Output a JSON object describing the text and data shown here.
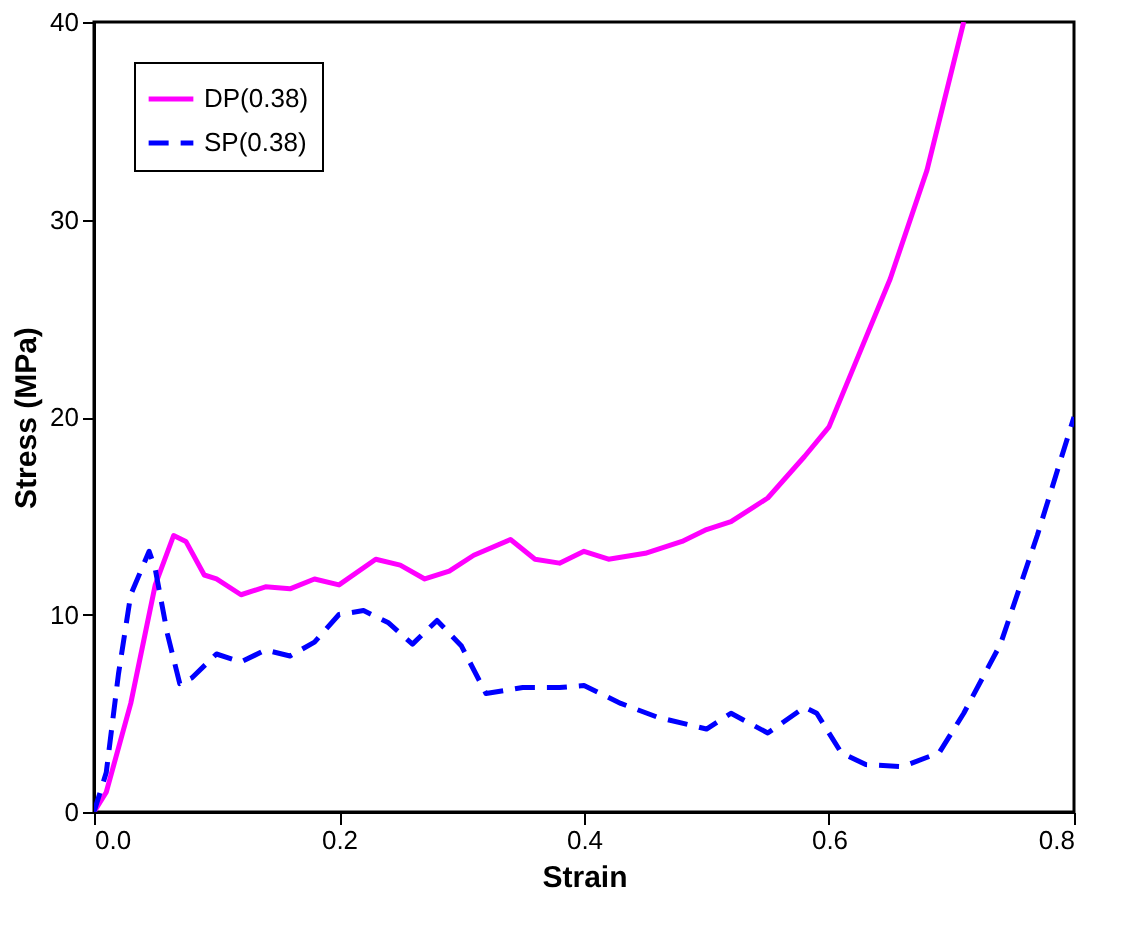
{
  "chart_data": {
    "type": "line",
    "xlabel": "Strain",
    "ylabel": "Stress (MPa)",
    "xlim": [
      0,
      0.8
    ],
    "ylim": [
      0,
      40
    ],
    "xticks": [
      {
        "value": 0,
        "label": "0.0"
      },
      0.2,
      0.4,
      0.6,
      0.8
    ],
    "yticks": [
      0,
      10,
      20,
      30,
      40
    ],
    "grid": false,
    "legend": "top left",
    "marker": "none",
    "series": [
      {
        "name": "DP(0.38)",
        "color": "#ff00ff",
        "line_style": "solid",
        "x": [
          0,
          0.01,
          0.03,
          0.05,
          0.065,
          0.075,
          0.09,
          0.1,
          0.12,
          0.14,
          0.16,
          0.18,
          0.2,
          0.23,
          0.25,
          0.27,
          0.29,
          0.31,
          0.34,
          0.36,
          0.38,
          0.4,
          0.42,
          0.45,
          0.48,
          0.5,
          0.52,
          0.55,
          0.58,
          0.6,
          0.62,
          0.65,
          0.68,
          0.7,
          0.71
        ],
        "values": [
          0,
          1,
          5.5,
          11.5,
          14,
          13.7,
          12,
          11.8,
          11,
          11.4,
          11.3,
          11.8,
          11.5,
          12.8,
          12.5,
          11.8,
          12.2,
          13,
          13.8,
          12.8,
          12.6,
          13.2,
          12.8,
          13.1,
          13.7,
          14.3,
          14.7,
          15.9,
          18,
          19.5,
          22.5,
          27,
          32.5,
          37.5,
          40
        ]
      },
      {
        "name": "SP(0.38)",
        "color": "#0000ff",
        "line_style": "dashed",
        "x": [
          0,
          0.01,
          0.02,
          0.03,
          0.045,
          0.05,
          0.06,
          0.07,
          0.08,
          0.1,
          0.12,
          0.14,
          0.16,
          0.18,
          0.2,
          0.22,
          0.24,
          0.26,
          0.28,
          0.3,
          0.32,
          0.35,
          0.38,
          0.4,
          0.43,
          0.46,
          0.5,
          0.52,
          0.55,
          0.58,
          0.59,
          0.61,
          0.63,
          0.66,
          0.69,
          0.71,
          0.74,
          0.77,
          0.8
        ],
        "values": [
          0,
          2,
          7,
          11,
          13.2,
          12.3,
          9,
          6.5,
          6.8,
          8,
          7.6,
          8.2,
          7.9,
          8.6,
          10,
          10.2,
          9.6,
          8.5,
          9.7,
          8.4,
          6,
          6.3,
          6.3,
          6.4,
          5.5,
          4.8,
          4.2,
          5,
          4,
          5.3,
          5,
          3,
          2.4,
          2.3,
          3,
          5,
          8.5,
          14,
          20
        ]
      }
    ]
  }
}
